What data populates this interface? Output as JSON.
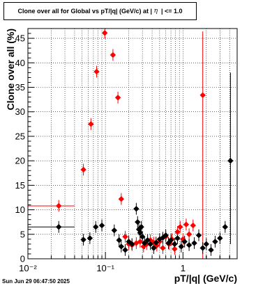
{
  "title_prefix": "Clone  over all for Global vs pT/|q| (GeV/c) at |",
  "title_eta": "η",
  "title_suffix": "| <= 1.0",
  "footer": "Sun Jun 29 06:47:50 2025",
  "colors": {
    "series_black": "#000000",
    "series_red": "#ff0000",
    "grid": "#000000"
  },
  "chart_data": {
    "type": "scatter",
    "xlabel": "pT/|q| (GeV/c)",
    "ylabel": "Clone  over all (%)",
    "xscale": "log",
    "xlim": [
      0.01,
      5
    ],
    "ylim": [
      0,
      47
    ],
    "grid": true,
    "x_tick_labels": [
      "10⁻²",
      "10⁻¹",
      "1"
    ],
    "x_tick_values": [
      0.01,
      0.1,
      1
    ],
    "y_tick_values": [
      0,
      5,
      10,
      15,
      20,
      25,
      30,
      35,
      40,
      45
    ],
    "series": [
      {
        "color": "black",
        "points": [
          {
            "x": 0.025,
            "y": 6.5,
            "xerr": 0.015
          },
          {
            "x": 0.052,
            "y": 3.9
          },
          {
            "x": 0.063,
            "y": 4.2
          },
          {
            "x": 0.075,
            "y": 6.5
          },
          {
            "x": 0.09,
            "y": 6.8
          },
          {
            "x": 0.13,
            "y": 5.8
          },
          {
            "x": 0.15,
            "y": 3.8
          },
          {
            "x": 0.16,
            "y": 2.5
          },
          {
            "x": 0.18,
            "y": 1.8
          },
          {
            "x": 0.2,
            "y": 3.5
          },
          {
            "x": 0.22,
            "y": 3.0
          },
          {
            "x": 0.25,
            "y": 10.2
          },
          {
            "x": 0.26,
            "y": 7.5
          },
          {
            "x": 0.27,
            "y": 6.0
          },
          {
            "x": 0.28,
            "y": 5.3
          },
          {
            "x": 0.29,
            "y": 6.5
          },
          {
            "x": 0.3,
            "y": 4.5
          },
          {
            "x": 0.32,
            "y": 3.2
          },
          {
            "x": 0.35,
            "y": 3.8
          },
          {
            "x": 0.38,
            "y": 3.0
          },
          {
            "x": 0.42,
            "y": 2.2
          },
          {
            "x": 0.45,
            "y": 3.3
          },
          {
            "x": 0.5,
            "y": 4.0
          },
          {
            "x": 0.55,
            "y": 4.3
          },
          {
            "x": 0.6,
            "y": 4.8
          },
          {
            "x": 0.65,
            "y": 3.2
          },
          {
            "x": 0.7,
            "y": 3.8
          },
          {
            "x": 0.78,
            "y": 3.0
          },
          {
            "x": 0.85,
            "y": 4.2
          },
          {
            "x": 0.95,
            "y": 2.5
          },
          {
            "x": 1.05,
            "y": 3.5
          },
          {
            "x": 1.2,
            "y": 2.8
          },
          {
            "x": 1.4,
            "y": 3.2
          },
          {
            "x": 1.6,
            "y": 4.8
          },
          {
            "x": 1.8,
            "y": 2.2
          },
          {
            "x": 2.0,
            "y": 3.0
          },
          {
            "x": 2.3,
            "y": 1.8
          },
          {
            "x": 2.6,
            "y": 3.5
          },
          {
            "x": 3.0,
            "y": 4.2
          },
          {
            "x": 3.5,
            "y": 6.5
          },
          {
            "x": 4.1,
            "y": 20.0,
            "yerr_low": 17.0,
            "yerr_high": 18.0
          }
        ]
      },
      {
        "color": "red",
        "points": [
          {
            "x": 0.025,
            "y": 10.8,
            "xerr": 0.015
          },
          {
            "x": 0.052,
            "y": 18.2
          },
          {
            "x": 0.065,
            "y": 27.5
          },
          {
            "x": 0.077,
            "y": 38.2
          },
          {
            "x": 0.098,
            "y": 46.1
          },
          {
            "x": 0.125,
            "y": 41.6
          },
          {
            "x": 0.145,
            "y": 32.9
          },
          {
            "x": 0.16,
            "y": 12.2
          },
          {
            "x": 0.18,
            "y": 4.5
          },
          {
            "x": 0.2,
            "y": 3.0
          },
          {
            "x": 0.22,
            "y": 2.8
          },
          {
            "x": 0.25,
            "y": 3.2
          },
          {
            "x": 0.28,
            "y": 3.5
          },
          {
            "x": 0.31,
            "y": 2.5
          },
          {
            "x": 0.34,
            "y": 3.0
          },
          {
            "x": 0.38,
            "y": 3.8
          },
          {
            "x": 0.42,
            "y": 3.3
          },
          {
            "x": 0.46,
            "y": 2.7
          },
          {
            "x": 0.5,
            "y": 3.5
          },
          {
            "x": 0.55,
            "y": 2.2
          },
          {
            "x": 0.6,
            "y": 4.5
          },
          {
            "x": 0.66,
            "y": 3.0
          },
          {
            "x": 0.72,
            "y": 4.0
          },
          {
            "x": 0.78,
            "y": 2.0
          },
          {
            "x": 0.85,
            "y": 5.5
          },
          {
            "x": 0.92,
            "y": 6.5
          },
          {
            "x": 1.0,
            "y": 4.0
          },
          {
            "x": 1.1,
            "y": 7.0
          },
          {
            "x": 1.2,
            "y": 5.0
          },
          {
            "x": 1.35,
            "y": 6.8
          },
          {
            "x": 1.8,
            "y": 33.4,
            "yerr_low": 33.4,
            "yerr_high": 13.0
          }
        ]
      }
    ]
  }
}
